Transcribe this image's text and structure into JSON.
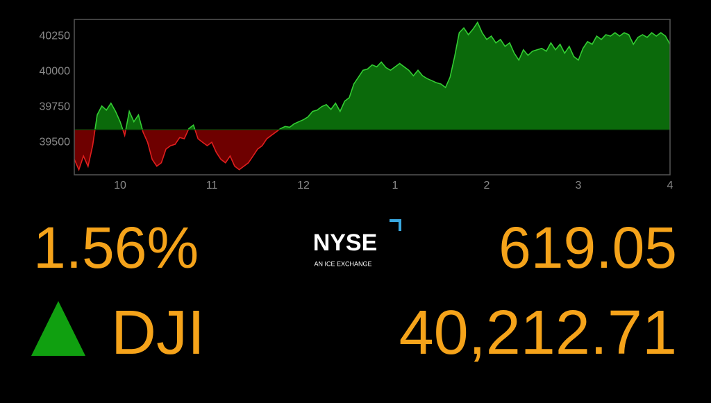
{
  "chart_data": {
    "type": "area",
    "x": [
      9.5,
      9.55,
      9.6,
      9.65,
      9.7,
      9.75,
      9.8,
      9.85,
      9.9,
      9.95,
      10,
      10.05,
      10.1,
      10.15,
      10.2,
      10.25,
      10.3,
      10.35,
      10.4,
      10.45,
      10.5,
      10.55,
      10.6,
      10.65,
      10.7,
      10.75,
      10.8,
      10.85,
      10.9,
      10.95,
      11,
      11.05,
      11.1,
      11.15,
      11.2,
      11.25,
      11.3,
      11.35,
      11.4,
      11.45,
      11.5,
      11.55,
      11.6,
      11.65,
      11.7,
      11.75,
      11.8,
      11.85,
      11.9,
      11.95,
      12,
      12.05,
      12.1,
      12.15,
      12.2,
      12.25,
      12.3,
      12.35,
      12.4,
      12.45,
      12.5,
      12.55,
      12.6,
      12.65,
      12.7,
      12.75,
      12.8,
      12.85,
      12.9,
      12.95,
      13,
      13.05,
      13.1,
      13.15,
      13.2,
      13.25,
      13.3,
      13.35,
      13.4,
      13.45,
      13.5,
      13.55,
      13.6,
      13.65,
      13.7,
      13.75,
      13.8,
      13.85,
      13.9,
      13.95,
      14,
      14.05,
      14.1,
      14.15,
      14.2,
      14.25,
      14.3,
      14.35,
      14.4,
      14.45,
      14.5,
      14.55,
      14.6,
      14.65,
      14.7,
      14.75,
      14.8,
      14.85,
      14.9,
      14.95,
      15,
      15.05,
      15.1,
      15.15,
      15.2,
      15.25,
      15.3,
      15.35,
      15.4,
      15.45,
      15.5,
      15.55,
      15.6,
      15.65,
      15.7,
      15.75,
      15.8,
      15.85,
      15.9,
      15.95,
      16
    ],
    "values": [
      39380,
      39306,
      39403,
      39330,
      39476,
      39694,
      39757,
      39728,
      39777,
      39719,
      39646,
      39549,
      39719,
      39646,
      39694,
      39573,
      39500,
      39379,
      39331,
      39355,
      39452,
      39476,
      39486,
      39534,
      39525,
      39597,
      39622,
      39525,
      39500,
      39476,
      39500,
      39428,
      39379,
      39355,
      39403,
      39331,
      39306,
      39331,
      39355,
      39403,
      39452,
      39476,
      39525,
      39549,
      39573,
      39597,
      39612,
      39607,
      39631,
      39646,
      39660,
      39680,
      39719,
      39728,
      39753,
      39767,
      39733,
      39777,
      39719,
      39791,
      39816,
      39913,
      39961,
      40010,
      40019,
      40048,
      40034,
      40068,
      40029,
      40010,
      40034,
      40058,
      40034,
      40010,
      39971,
      40010,
      39971,
      39951,
      39937,
      39922,
      39913,
      39888,
      39961,
      40107,
      40276,
      40310,
      40262,
      40301,
      40349,
      40276,
      40228,
      40252,
      40204,
      40228,
      40179,
      40204,
      40131,
      40082,
      40155,
      40116,
      40145,
      40155,
      40165,
      40145,
      40204,
      40155,
      40194,
      40131,
      40179,
      40107,
      40082,
      40165,
      40213,
      40194,
      40252,
      40228,
      40262,
      40252,
      40276,
      40252,
      40276,
      40262,
      40194,
      40243,
      40262,
      40243,
      40276,
      40252,
      40276,
      40252,
      40194
    ],
    "baseline": 39590,
    "up_color": "#0b6a0b",
    "up_line_color": "#33cc33",
    "down_color": "#6e0000",
    "down_line_color": "#e01e1e",
    "xlim": [
      9.5,
      16
    ],
    "ylim": [
      39270,
      40370
    ],
    "xticks": [
      10,
      11,
      12,
      {
        "value": 13,
        "label": "1"
      },
      {
        "value": 14,
        "label": "2"
      },
      {
        "value": 15,
        "label": "3"
      },
      {
        "value": 16,
        "label": "4"
      }
    ],
    "yticks": [
      39500,
      39750,
      40000,
      40250
    ]
  },
  "ticker": {
    "change_percent": "1.56%",
    "points_change": "619.05",
    "symbol": "DJI",
    "price": "40,212.71"
  },
  "logo": {
    "name": "NYSE",
    "tagline": "AN ICE EXCHANGE"
  }
}
